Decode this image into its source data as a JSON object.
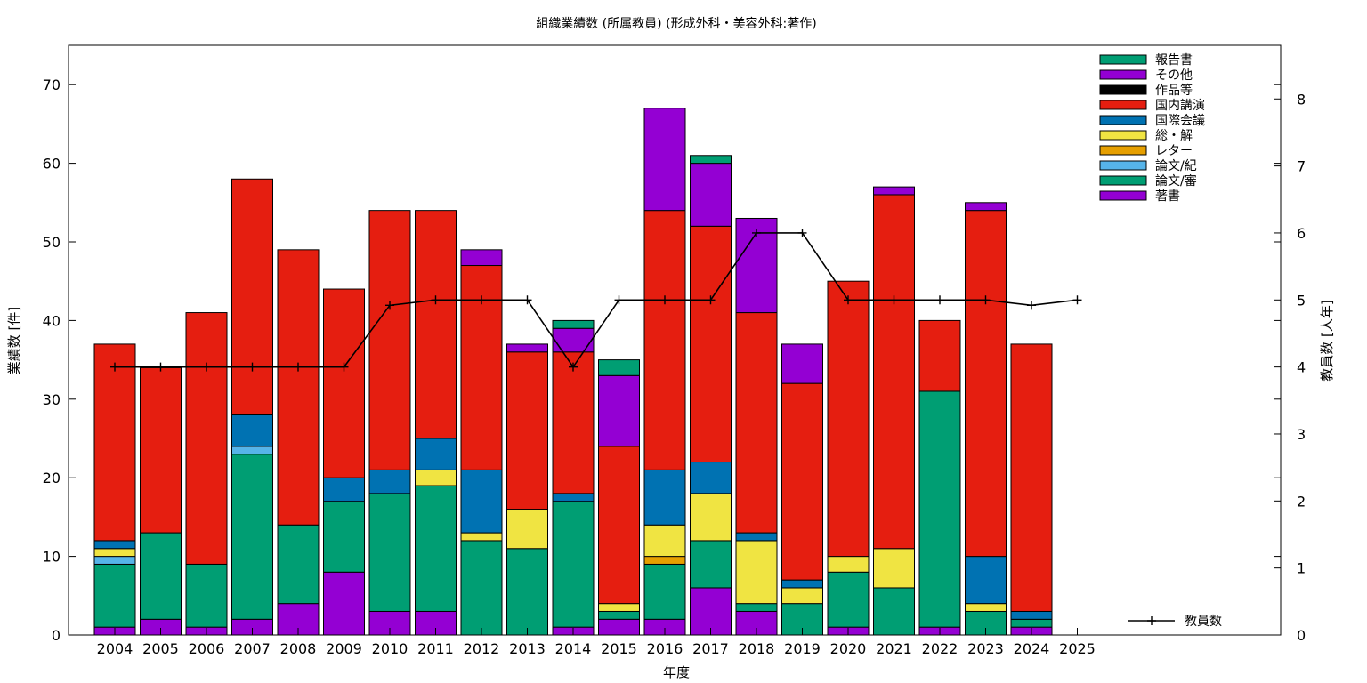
{
  "chart_data": {
    "type": "bar",
    "stacked": true,
    "title": "組織業績数 (所属教員) (形成外科・美容外科:著作)",
    "xlabel": "年度",
    "ylabel": "業績数 [件]",
    "y2label": "教員数 [人年]",
    "ylim": [
      0,
      75
    ],
    "y2lim": [
      0,
      8.8
    ],
    "yticks": [
      0,
      10,
      20,
      30,
      40,
      50,
      60,
      70
    ],
    "y2ticks": [
      0,
      1,
      2,
      3,
      4,
      5,
      6,
      7,
      8
    ],
    "grid": false,
    "legend_position": "top-right",
    "categories": [
      "2004",
      "2005",
      "2006",
      "2007",
      "2008",
      "2009",
      "2010",
      "2011",
      "2012",
      "2013",
      "2014",
      "2015",
      "2016",
      "2017",
      "2018",
      "2019",
      "2020",
      "2021",
      "2022",
      "2023",
      "2024",
      "2025"
    ],
    "series": [
      {
        "name": "著書",
        "color": "#9400d3",
        "values": [
          1,
          2,
          1,
          2,
          4,
          8,
          3,
          3,
          0,
          0,
          1,
          2,
          2,
          6,
          3,
          0,
          1,
          0,
          1,
          0,
          1,
          0
        ]
      },
      {
        "name": "論文/審",
        "color": "#009e73",
        "values": [
          8,
          11,
          8,
          21,
          10,
          9,
          15,
          16,
          12,
          11,
          16,
          1,
          7,
          6,
          1,
          4,
          7,
          6,
          30,
          3,
          1,
          0
        ]
      },
      {
        "name": "論文/紀",
        "color": "#56b4e9",
        "values": [
          1,
          0,
          0,
          1,
          0,
          0,
          0,
          0,
          0,
          0,
          0,
          0,
          0,
          0,
          0,
          0,
          0,
          0,
          0,
          0,
          0,
          0
        ]
      },
      {
        "name": "レター",
        "color": "#e69f00",
        "values": [
          0,
          0,
          0,
          0,
          0,
          0,
          0,
          0,
          0,
          0,
          0,
          0,
          1,
          0,
          0,
          0,
          0,
          0,
          0,
          0,
          0,
          0
        ]
      },
      {
        "name": "総・解",
        "color": "#f0e442",
        "values": [
          1,
          0,
          0,
          0,
          0,
          0,
          0,
          2,
          1,
          5,
          0,
          1,
          4,
          6,
          8,
          2,
          2,
          5,
          0,
          1,
          0,
          0
        ]
      },
      {
        "name": "国際会議",
        "color": "#0072b2",
        "values": [
          1,
          0,
          0,
          4,
          0,
          3,
          3,
          4,
          8,
          0,
          1,
          0,
          7,
          4,
          1,
          1,
          0,
          0,
          0,
          6,
          1,
          0
        ]
      },
      {
        "name": "国内講演",
        "color": "#e51e10",
        "values": [
          25,
          21,
          32,
          30,
          35,
          24,
          33,
          29,
          26,
          20,
          18,
          20,
          33,
          30,
          28,
          25,
          35,
          45,
          9,
          44,
          34,
          0
        ]
      },
      {
        "name": "作品等",
        "color": "#000000",
        "values": [
          0,
          0,
          0,
          0,
          0,
          0,
          0,
          0,
          0,
          0,
          0,
          0,
          0,
          0,
          0,
          0,
          0,
          0,
          0,
          0,
          0,
          0
        ]
      },
      {
        "name": "その他",
        "color": "#9400d3",
        "values": [
          0,
          0,
          0,
          0,
          0,
          0,
          0,
          0,
          2,
          1,
          3,
          9,
          13,
          8,
          12,
          5,
          0,
          1,
          0,
          1,
          0,
          0
        ]
      },
      {
        "name": "報告書",
        "color": "#009e73",
        "values": [
          0,
          0,
          0,
          0,
          0,
          0,
          0,
          0,
          0,
          0,
          1,
          2,
          0,
          1,
          0,
          0,
          0,
          0,
          0,
          0,
          0,
          0
        ]
      }
    ],
    "line_series": {
      "name": "教員数",
      "axis": "y2",
      "color": "#000000",
      "values": [
        4,
        4,
        4,
        4,
        4,
        4,
        4.92,
        5,
        5,
        5,
        4,
        5,
        5,
        5,
        6,
        6,
        5,
        5,
        5,
        5,
        4.92,
        5
      ]
    },
    "legend_order": [
      "報告書",
      "その他",
      "作品等",
      "国内講演",
      "国際会議",
      "総・解",
      "レター",
      "論文/紀",
      "論文/審",
      "著書"
    ]
  }
}
